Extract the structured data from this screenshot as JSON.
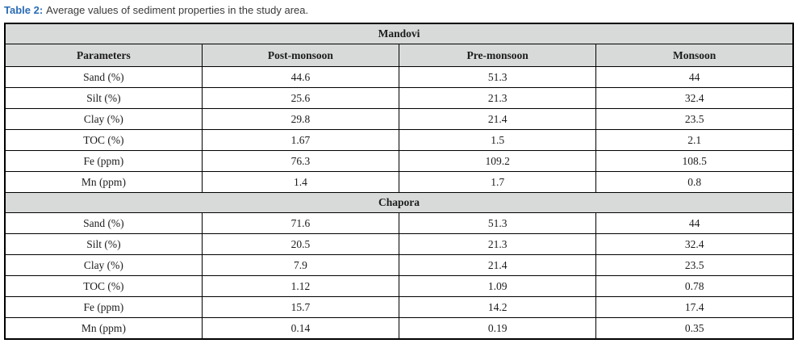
{
  "caption": {
    "label": "Table 2:",
    "text": "Average values of sediment properties in the study area."
  },
  "table": {
    "columns": [
      "Parameters",
      "Post-monsoon",
      "Pre-monsoon",
      "Monsoon"
    ],
    "sections": [
      {
        "name": "Mandovi",
        "rows": [
          {
            "parameter": "Sand (%)",
            "values": [
              "44.6",
              "51.3",
              "44"
            ]
          },
          {
            "parameter": "Silt (%)",
            "values": [
              "25.6",
              "21.3",
              "32.4"
            ]
          },
          {
            "parameter": "Clay (%)",
            "values": [
              "29.8",
              "21.4",
              "23.5"
            ]
          },
          {
            "parameter": "TOC (%)",
            "values": [
              "1.67",
              "1.5",
              "2.1"
            ]
          },
          {
            "parameter": "Fe (ppm)",
            "values": [
              "76.3",
              "109.2",
              "108.5"
            ]
          },
          {
            "parameter": "Mn (ppm)",
            "values": [
              "1.4",
              "1.7",
              "0.8"
            ]
          }
        ]
      },
      {
        "name": "Chapora",
        "rows": [
          {
            "parameter": "Sand (%)",
            "values": [
              "71.6",
              "51.3",
              "44"
            ]
          },
          {
            "parameter": "Silt (%)",
            "values": [
              "20.5",
              "21.3",
              "32.4"
            ]
          },
          {
            "parameter": "Clay (%)",
            "values": [
              "7.9",
              "21.4",
              "23.5"
            ]
          },
          {
            "parameter": "TOC (%)",
            "values": [
              "1.12",
              "1.09",
              "0.78"
            ]
          },
          {
            "parameter": "Fe (ppm)",
            "values": [
              "15.7",
              "14.2",
              "17.4"
            ]
          },
          {
            "parameter": "Mn (ppm)",
            "values": [
              "0.14",
              "0.19",
              "0.35"
            ]
          }
        ]
      }
    ],
    "colors": {
      "header_bg": "#d7dad8",
      "border": "#000000",
      "caption_accent": "#2b6cb5",
      "text": "#1c1c1c"
    }
  }
}
